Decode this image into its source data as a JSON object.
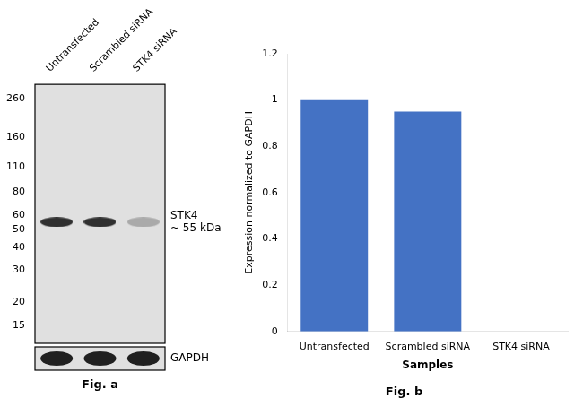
{
  "chart_data": [
    {
      "type": "blot",
      "categories": [
        "Untransfected",
        "Scrambled siRNA",
        "STK4 siRNA"
      ],
      "log": "y",
      "ylim": [
        12,
        310
      ],
      "yticks": [
        260,
        160,
        110,
        80,
        60,
        50,
        40,
        30,
        20,
        15
      ],
      "grid": false,
      "color": "#e0e0e0",
      "series": [
        {
          "name": "STK4\n~ 55 kDa",
          "values": [
            55,
            55,
            55
          ],
          "colors": [
            "#303030",
            "#303030",
            "#aaaaaa"
          ]
        }
      ],
      "annotations": [
        {
          "text": "GAPDH",
          "color": "#202020"
        },
        {
          "text": "Fig. a"
        }
      ]
    },
    {
      "type": "bar",
      "categories": [
        "Untransfected",
        "Scrambled siRNA",
        "STK4 siRNA"
      ],
      "values": [
        1.0,
        0.95,
        0.0
      ],
      "color": "#4472C4",
      "xlabel": "Samples",
      "ylabel": "Expression normalized to GAPDH",
      "ylim": [
        0,
        1.2
      ],
      "yticks": [
        0,
        0.2,
        0.4,
        0.6,
        0.8,
        1.0,
        1.2
      ],
      "grid": false,
      "annotations": [
        {
          "text": "Fig. b"
        }
      ]
    }
  ]
}
